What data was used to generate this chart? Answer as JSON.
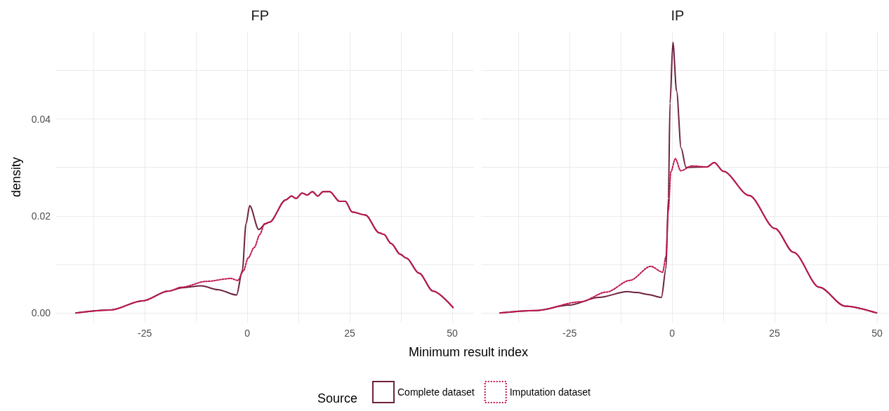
{
  "chart_data": [
    {
      "type": "line",
      "title": "FP",
      "xlabel": "Minimum result index",
      "ylabel": "density",
      "legend_title": "Source",
      "legend": "bottom",
      "grid": true,
      "xlim": [
        -46.6,
        55.3
      ],
      "xticks": [
        {
          "value": -37.5,
          "label": null
        },
        -25,
        {
          "value": -12.5,
          "label": null
        },
        0,
        {
          "value": 12.5,
          "label": null
        },
        25,
        {
          "value": 37.5,
          "label": null
        },
        50
      ],
      "ylim": [
        -0.002,
        0.058
      ],
      "yticks": [
        {
          "value": 0,
          "label": "0.00"
        },
        {
          "value": 0.01,
          "label": null
        },
        {
          "value": 0.02,
          "label": "0.02"
        },
        {
          "value": 0.03,
          "label": null
        },
        {
          "value": 0.04,
          "label": "0.04"
        },
        {
          "value": 0.05,
          "label": null
        }
      ],
      "series": [
        {
          "name": "Complete dataset",
          "color": "#6d2140",
          "line_style": "solid",
          "x": [
            -41.8,
            -33.4,
            -25.5,
            -19.2,
            -15.8,
            -11.2,
            -7.2,
            -2.6,
            -1.2,
            -0.3,
            0.6,
            2.8,
            4.5,
            5.4,
            9.4,
            10.8,
            11.9,
            13.4,
            14.6,
            15.9,
            17.2,
            18.5,
            20.1,
            22.5,
            23.9,
            25.6,
            28.8,
            32.2,
            33.3,
            35.1,
            37.3,
            38.8,
            41.9,
            45.3,
            50.2
          ],
          "values": [
            0,
            0.0006,
            0.0025,
            0.0045,
            0.0052,
            0.0056,
            0.0048,
            0.0037,
            0.0087,
            0.0184,
            0.0221,
            0.0172,
            0.0184,
            0.0187,
            0.0233,
            0.0241,
            0.0236,
            0.0247,
            0.0243,
            0.025,
            0.0241,
            0.025,
            0.025,
            0.023,
            0.023,
            0.0208,
            0.0202,
            0.0165,
            0.0162,
            0.0143,
            0.0121,
            0.0113,
            0.0082,
            0.0045,
            0.0011
          ]
        },
        {
          "name": "Imputation dataset",
          "color": "#c0154f",
          "line_style": "dotted",
          "x": [
            -41.8,
            -33.4,
            -25.5,
            -19.2,
            -16,
            -10,
            -4,
            -2.3,
            -0.9,
            0.2,
            1.7,
            3.1,
            4.2,
            5.4,
            9.4,
            10.8,
            11.9,
            13.4,
            14.6,
            15.9,
            17.2,
            18.5,
            20.1,
            22.5,
            23.9,
            25.6,
            28.8,
            32.2,
            33.3,
            35.1,
            37.3,
            38.8,
            41.9,
            45.3,
            50.2
          ],
          "values": [
            0,
            0.0006,
            0.0025,
            0.0045,
            0.0053,
            0.0065,
            0.0071,
            0.0067,
            0.0087,
            0.0113,
            0.0135,
            0.0162,
            0.0184,
            0.0187,
            0.0233,
            0.0241,
            0.0236,
            0.0247,
            0.0243,
            0.025,
            0.0241,
            0.025,
            0.025,
            0.023,
            0.023,
            0.0208,
            0.0202,
            0.0165,
            0.0162,
            0.0143,
            0.0121,
            0.0113,
            0.0082,
            0.0045,
            0.0011
          ]
        }
      ]
    },
    {
      "type": "line",
      "title": "IP",
      "grid": true,
      "tick_labels": "x",
      "xlim": [
        -46.6,
        52.9
      ],
      "xticks": [
        {
          "value": -37.5,
          "label": null
        },
        -25,
        {
          "value": -12.5,
          "label": null
        },
        0,
        {
          "value": 12.5,
          "label": null
        },
        25,
        {
          "value": 37.5,
          "label": null
        },
        50
      ],
      "ylim": [
        -0.002,
        0.058
      ],
      "yticks": [
        {
          "value": 0,
          "label": null
        },
        {
          "value": 0.01,
          "label": null
        },
        {
          "value": 0.02,
          "label": null
        },
        {
          "value": 0.03,
          "label": null
        },
        {
          "value": 0.04,
          "label": null
        },
        {
          "value": 0.05,
          "label": null
        }
      ],
      "series": [
        {
          "color": "#6d2140",
          "line_style": "solid",
          "x": [
            -42,
            -33.2,
            -25.2,
            -17.8,
            -10.9,
            -8.6,
            -5.8,
            -2.6,
            -1.5,
            -0.9,
            -0.5,
            0.2,
            1.1,
            2.2,
            3.4,
            8.5,
            10.3,
            12.5,
            18.8,
            25.1,
            29.6,
            35.9,
            42.2,
            49.9
          ],
          "values": [
            0,
            0.0005,
            0.0016,
            0.0032,
            0.0044,
            0.0042,
            0.0038,
            0.0032,
            0.0091,
            0.0237,
            0.0432,
            0.0558,
            0.0457,
            0.034,
            0.03,
            0.0301,
            0.031,
            0.0292,
            0.0242,
            0.0174,
            0.0125,
            0.0053,
            0.0014,
            0
          ]
        },
        {
          "color": "#c0154f",
          "line_style": "dotted",
          "x": [
            -42,
            -33.2,
            -22.3,
            -16,
            -10.3,
            -5.2,
            -2.3,
            -1.5,
            -0.9,
            -0.3,
            0.8,
            2.1,
            4.8,
            8.5,
            10.3,
            12.5,
            18.8,
            25.1,
            29.6,
            35.9,
            42.2,
            49.9
          ],
          "values": [
            0,
            0.0005,
            0.0023,
            0.0043,
            0.0067,
            0.0096,
            0.0084,
            0.0116,
            0.0213,
            0.0291,
            0.0318,
            0.0293,
            0.0303,
            0.0301,
            0.031,
            0.0292,
            0.0242,
            0.0174,
            0.0125,
            0.0053,
            0.0014,
            0
          ]
        }
      ]
    }
  ]
}
